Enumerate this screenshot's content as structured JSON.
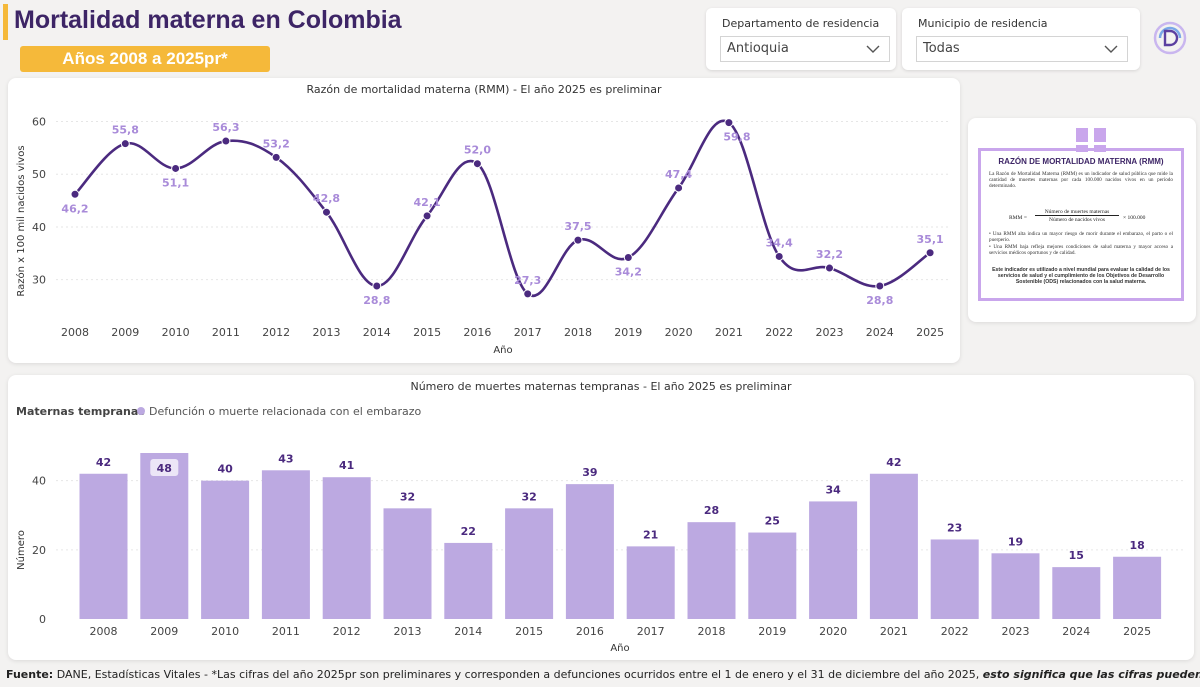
{
  "header": {
    "title": "Mortalidad materna en Colombia",
    "subtitle": "Años 2008 a 2025pr*",
    "accent_color": "#f5b93a",
    "title_color": "#3d2566"
  },
  "filters": {
    "departamento": {
      "label": "Departamento de residencia",
      "value": "Antioquia"
    },
    "municipio": {
      "label": "Municipio de residencia",
      "value": "Todas"
    }
  },
  "info_card": {
    "title": "RAZÓN DE MORTALIDAD MATERNA (RMM)",
    "intro": "La Razón de Mortalidad Materna (RMM) es un indicador de salud pública que mide la cantidad de muertes maternas por cada 100.000 nacidos vivos en un período determinado.",
    "formula_lhs": "RMM =",
    "formula_num": "Número de muertes maternas",
    "formula_den": "Número de nacidos vivos",
    "formula_mult": "× 100.000",
    "bullet1": "• Una RMM alta indica un mayor riesgo de morir durante el embarazo, el parto o el puerperio.",
    "bullet2": "• Una RMM baja refleja mejores condiciones de salud materna y mayor acceso a servicios médicos oportunos y de calidad.",
    "closing": "Este indicador es utilizado a nivel mundial para evaluar la calidad de los servicios de salud y el cumplimiento de los Objetivos de Desarrollo Sostenible (ODS) relacionados con la salud materna."
  },
  "footer": {
    "prefix": "Fuente:",
    "text": " DANE, Estadísticas Vitales - *Las cifras del año 2025pr son preliminares y corresponden a defunciones ocurridos entre el 1 de enero y el 31 de diciembre del año 2025, ",
    "emphasis": "esto significa que las cifras pueden cambiar",
    "end": "."
  },
  "chart_data": [
    {
      "type": "line",
      "title": "Razón de mortalidad materna (RMM) - El año 2025 es preliminar",
      "xlabel": "Año",
      "ylabel": "Razón x 100 mil nacidos vivos",
      "categories": [
        "2008",
        "2009",
        "2010",
        "2011",
        "2012",
        "2013",
        "2014",
        "2015",
        "2016",
        "2017",
        "2018",
        "2019",
        "2020",
        "2021",
        "2022",
        "2023",
        "2024",
        "2025"
      ],
      "values": [
        46.2,
        55.8,
        51.1,
        56.3,
        53.2,
        42.8,
        28.8,
        42.1,
        52.0,
        27.3,
        37.5,
        34.2,
        47.4,
        59.8,
        34.4,
        32.2,
        28.8,
        35.1
      ],
      "labels": [
        "46,2",
        "55,8",
        "51,1",
        "56,3",
        "53,2",
        "42,8",
        "28,8",
        "42,1",
        "52,0",
        "27,3",
        "37,5",
        "34,2",
        "47,4",
        "59,8",
        "34,4",
        "32,2",
        "28,8",
        "35,1"
      ],
      "yticks": [
        30,
        40,
        50,
        60
      ],
      "ylim": [
        25,
        62
      ],
      "line_color": "#4b2a7f",
      "label_color": "#a98bd9"
    },
    {
      "type": "bar",
      "title": "Número de muertes maternas tempranas - El año 2025 es preliminar",
      "legend_title": "Maternas tempranas",
      "legend_entry": "Defunción o muerte relacionada con el embarazo",
      "xlabel": "Año",
      "ylabel": "Número",
      "categories": [
        "2008",
        "2009",
        "2010",
        "2011",
        "2012",
        "2013",
        "2014",
        "2015",
        "2016",
        "2017",
        "2018",
        "2019",
        "2020",
        "2021",
        "2022",
        "2023",
        "2024",
        "2025"
      ],
      "values": [
        42,
        48,
        40,
        43,
        41,
        32,
        22,
        32,
        39,
        21,
        28,
        25,
        34,
        42,
        23,
        19,
        15,
        18
      ],
      "yticks": [
        0,
        20,
        40
      ],
      "ylim": [
        0,
        48
      ],
      "bar_color": "#bca9e1",
      "label_color": "#4b2a7f"
    }
  ]
}
